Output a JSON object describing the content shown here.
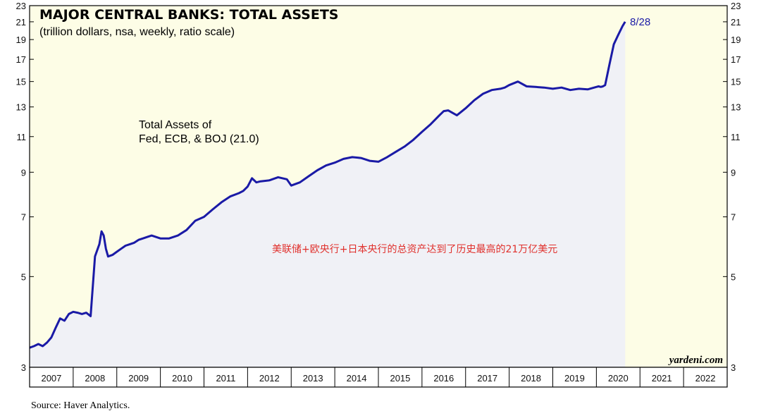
{
  "chart_data": {
    "type": "line",
    "title": "MAJOR CENTRAL BANKS: TOTAL ASSETS",
    "subtitle": "(trillion dollars, nsa, weekly, ratio scale)",
    "series_label_lines": [
      "Total Assets of",
      "Fed, ECB, & BOJ (21.0)"
    ],
    "end_label": "8/28",
    "annotation": "美联储+欧央行+日本央行的总资产达到了历史最高的21万亿美元",
    "brand": "yardeni.com",
    "source": "Source: Haver Analytics.",
    "y_scale": "log",
    "ylim": [
      3,
      23
    ],
    "y_ticks": [
      3,
      5,
      7,
      9,
      11,
      13,
      15,
      17,
      19,
      21,
      23
    ],
    "x_range": [
      2007.0,
      2023.0
    ],
    "x_labels": [
      "2007",
      "2008",
      "2009",
      "2010",
      "2011",
      "2012",
      "2013",
      "2014",
      "2015",
      "2016",
      "2017",
      "2018",
      "2019",
      "2020",
      "2021",
      "2022"
    ],
    "colors": {
      "line": "#1a1aa6",
      "plot_background": "#fdfde6",
      "area_fill": "#f0f1f6"
    },
    "series": [
      {
        "x": [
          2007.0,
          2007.1,
          2007.2,
          2007.3,
          2007.4,
          2007.5,
          2007.6,
          2007.7,
          2007.8,
          2007.9,
          2008.0,
          2008.1,
          2008.2,
          2008.3,
          2008.4,
          2008.5,
          2008.6,
          2008.65,
          2008.7,
          2008.75,
          2008.8,
          2008.9,
          2009.0,
          2009.1,
          2009.2,
          2009.3,
          2009.4,
          2009.5,
          2009.6,
          2009.7,
          2009.8,
          2010.0,
          2010.2,
          2010.4,
          2010.6,
          2010.8,
          2011.0,
          2011.2,
          2011.4,
          2011.6,
          2011.8,
          2011.9,
          2012.0,
          2012.1,
          2012.2,
          2012.3,
          2012.5,
          2012.7,
          2012.9,
          2013.0,
          2013.2,
          2013.4,
          2013.6,
          2013.8,
          2014.0,
          2014.2,
          2014.4,
          2014.6,
          2014.8,
          2015.0,
          2015.2,
          2015.4,
          2015.6,
          2015.8,
          2016.0,
          2016.2,
          2016.4,
          2016.5,
          2016.6,
          2016.8,
          2017.0,
          2017.2,
          2017.4,
          2017.6,
          2017.8,
          2017.9,
          2018.0,
          2018.2,
          2018.4,
          2018.6,
          2018.8,
          2019.0,
          2019.2,
          2019.4,
          2019.6,
          2019.8,
          2019.95,
          2020.0,
          2020.05,
          2020.1,
          2020.15,
          2020.2,
          2020.3,
          2020.4,
          2020.5,
          2020.6,
          2020.66
        ],
        "values": [
          3.35,
          3.38,
          3.42,
          3.38,
          3.45,
          3.55,
          3.75,
          3.95,
          3.9,
          4.05,
          4.1,
          4.08,
          4.05,
          4.08,
          4.0,
          5.6,
          6.0,
          6.45,
          6.3,
          5.85,
          5.6,
          5.65,
          5.75,
          5.85,
          5.95,
          6.0,
          6.05,
          6.15,
          6.2,
          6.25,
          6.3,
          6.2,
          6.2,
          6.3,
          6.5,
          6.85,
          7.0,
          7.3,
          7.6,
          7.85,
          8.0,
          8.1,
          8.3,
          8.7,
          8.5,
          8.55,
          8.6,
          8.75,
          8.65,
          8.35,
          8.5,
          8.8,
          9.1,
          9.35,
          9.5,
          9.7,
          9.8,
          9.75,
          9.6,
          9.55,
          9.8,
          10.1,
          10.4,
          10.8,
          11.3,
          11.8,
          12.4,
          12.7,
          12.75,
          12.4,
          12.9,
          13.5,
          14.0,
          14.3,
          14.4,
          14.5,
          14.7,
          15.0,
          14.6,
          14.55,
          14.5,
          14.4,
          14.5,
          14.3,
          14.4,
          14.35,
          14.5,
          14.55,
          14.6,
          14.55,
          14.6,
          14.7,
          16.5,
          18.5,
          19.5,
          20.5,
          21.0
        ]
      }
    ]
  }
}
